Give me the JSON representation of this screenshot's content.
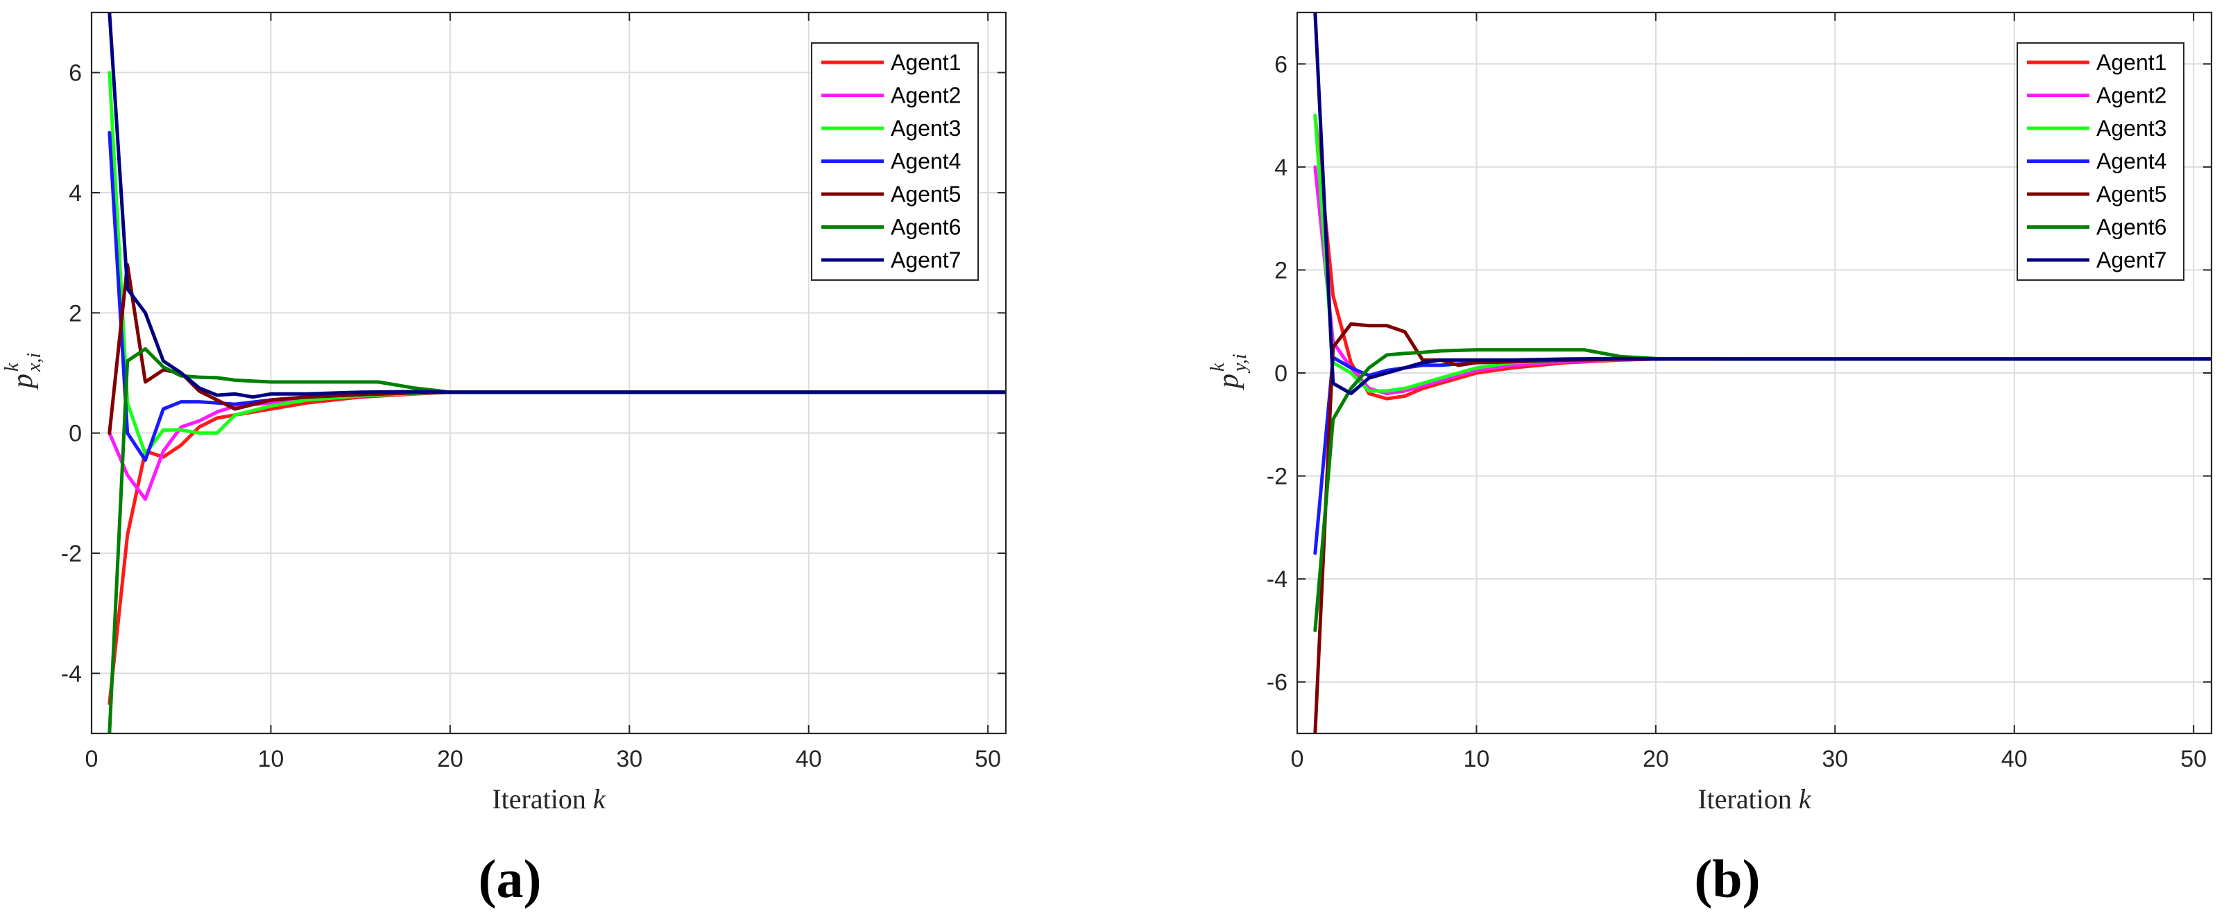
{
  "colors": {
    "Agent1": "#ff1a1a",
    "Agent2": "#ff1aff",
    "Agent3": "#1aff1a",
    "Agent4": "#1a1aff",
    "Agent5": "#800000",
    "Agent6": "#008000",
    "Agent7": "#000080"
  },
  "chart_data": [
    {
      "type": "line",
      "panel_label": "(a)",
      "xlabel": "Iteration",
      "xlabel_var": "k",
      "ylabel": {
        "main": "p",
        "sup": "k",
        "sub": "x,i"
      },
      "xlim": [
        0,
        51
      ],
      "ylim": [
        -5,
        7
      ],
      "xticks": [
        0,
        10,
        20,
        30,
        40,
        50
      ],
      "yticks": [
        -4,
        -2,
        0,
        2,
        4,
        6
      ],
      "grid": true,
      "legend": "top-right",
      "series": [
        {
          "name": "Agent1",
          "x": [
            1,
            2,
            3,
            4,
            5,
            6,
            7,
            8,
            10,
            12,
            15,
            18,
            20,
            25,
            30,
            40,
            51
          ],
          "y": [
            -4.5,
            -1.7,
            -0.3,
            -0.4,
            -0.2,
            0.1,
            0.25,
            0.3,
            0.4,
            0.5,
            0.6,
            0.65,
            0.68,
            0.68,
            0.68,
            0.68,
            0.68
          ]
        },
        {
          "name": "Agent2",
          "x": [
            1,
            2,
            3,
            4,
            5,
            6,
            7,
            8,
            10,
            12,
            15,
            18,
            20,
            25,
            30,
            40,
            51
          ],
          "y": [
            0,
            -0.7,
            -1.1,
            -0.3,
            0.1,
            0.2,
            0.35,
            0.45,
            0.5,
            0.55,
            0.62,
            0.66,
            0.68,
            0.68,
            0.68,
            0.68,
            0.68
          ]
        },
        {
          "name": "Agent3",
          "x": [
            1,
            2,
            3,
            4,
            5,
            6,
            7,
            8,
            10,
            12,
            15,
            18,
            20,
            25,
            30,
            40,
            51
          ],
          "y": [
            6,
            0.5,
            -0.35,
            0.05,
            0.05,
            0.0,
            0.0,
            0.3,
            0.45,
            0.55,
            0.62,
            0.66,
            0.68,
            0.68,
            0.68,
            0.68,
            0.68
          ]
        },
        {
          "name": "Agent4",
          "x": [
            1,
            2,
            3,
            4,
            5,
            6,
            7,
            8,
            10,
            12,
            15,
            18,
            20,
            25,
            30,
            40,
            51
          ],
          "y": [
            5,
            0.0,
            -0.45,
            0.4,
            0.52,
            0.52,
            0.5,
            0.48,
            0.55,
            0.6,
            0.64,
            0.67,
            0.68,
            0.68,
            0.68,
            0.68,
            0.68
          ]
        },
        {
          "name": "Agent5",
          "x": [
            1,
            2,
            3,
            4,
            5,
            6,
            7,
            8,
            10,
            12,
            15,
            18,
            20,
            25,
            30,
            40,
            51
          ],
          "y": [
            0,
            2.8,
            0.85,
            1.05,
            1.0,
            0.7,
            0.55,
            0.4,
            0.55,
            0.6,
            0.64,
            0.67,
            0.68,
            0.68,
            0.68,
            0.68,
            0.68
          ]
        },
        {
          "name": "Agent6",
          "x": [
            1,
            2,
            3,
            4,
            5,
            6,
            7,
            8,
            10,
            12,
            15,
            16,
            18,
            20,
            25,
            30,
            40,
            51
          ],
          "y": [
            -5,
            1.2,
            1.4,
            1.1,
            0.95,
            0.93,
            0.92,
            0.88,
            0.85,
            0.85,
            0.85,
            0.85,
            0.75,
            0.68,
            0.68,
            0.68,
            0.68,
            0.68
          ]
        },
        {
          "name": "Agent7",
          "x": [
            1,
            2,
            3,
            4,
            5,
            6,
            7,
            8,
            9,
            10,
            12,
            15,
            18,
            20,
            25,
            30,
            40,
            51
          ],
          "y": [
            7,
            2.4,
            2.0,
            1.2,
            1.0,
            0.75,
            0.63,
            0.65,
            0.6,
            0.65,
            0.65,
            0.68,
            0.69,
            0.68,
            0.68,
            0.68,
            0.68,
            0.68
          ]
        }
      ]
    },
    {
      "type": "line",
      "panel_label": "(b)",
      "xlabel": "Iteration",
      "xlabel_var": "k",
      "ylabel": {
        "main": "p",
        "sup": "k",
        "sub": "y,i"
      },
      "xlim": [
        0,
        51
      ],
      "ylim": [
        -7,
        7
      ],
      "xticks": [
        0,
        10,
        20,
        30,
        40,
        50
      ],
      "yticks": [
        -6,
        -4,
        -2,
        0,
        2,
        4,
        6
      ],
      "grid": true,
      "legend": "top-right",
      "series": [
        {
          "name": "Agent1",
          "x": [
            1,
            2,
            3,
            4,
            5,
            6,
            7,
            8,
            10,
            12,
            15,
            18,
            20,
            25,
            30,
            40,
            51
          ],
          "y": [
            5,
            1.5,
            0.2,
            -0.4,
            -0.5,
            -0.45,
            -0.3,
            -0.2,
            0.0,
            0.1,
            0.2,
            0.25,
            0.27,
            0.27,
            0.27,
            0.27,
            0.27
          ]
        },
        {
          "name": "Agent2",
          "x": [
            1,
            2,
            3,
            4,
            5,
            6,
            7,
            8,
            10,
            12,
            15,
            18,
            20,
            25,
            30,
            40,
            51
          ],
          "y": [
            4,
            0.6,
            0.1,
            -0.3,
            -0.4,
            -0.35,
            -0.25,
            -0.15,
            0.05,
            0.15,
            0.22,
            0.26,
            0.27,
            0.27,
            0.27,
            0.27,
            0.27
          ]
        },
        {
          "name": "Agent3",
          "x": [
            1,
            2,
            3,
            4,
            5,
            6,
            7,
            8,
            10,
            12,
            15,
            18,
            20,
            25,
            30,
            40,
            51
          ],
          "y": [
            5,
            0.2,
            0.0,
            -0.35,
            -0.35,
            -0.3,
            -0.2,
            -0.1,
            0.1,
            0.2,
            0.25,
            0.27,
            0.27,
            0.27,
            0.27,
            0.27,
            0.27
          ]
        },
        {
          "name": "Agent4",
          "x": [
            1,
            2,
            3,
            4,
            5,
            6,
            7,
            8,
            10,
            12,
            15,
            18,
            20,
            25,
            30,
            40,
            51
          ],
          "y": [
            -3.5,
            0.3,
            0.1,
            -0.05,
            0.05,
            0.1,
            0.15,
            0.15,
            0.2,
            0.22,
            0.25,
            0.27,
            0.27,
            0.27,
            0.27,
            0.27,
            0.27
          ]
        },
        {
          "name": "Agent5",
          "x": [
            1,
            2,
            3,
            4,
            5,
            6,
            7,
            8,
            9,
            10,
            12,
            15,
            18,
            20,
            25,
            30,
            40,
            51
          ],
          "y": [
            -7,
            0.5,
            0.95,
            0.92,
            0.92,
            0.8,
            0.25,
            0.25,
            0.15,
            0.2,
            0.22,
            0.25,
            0.27,
            0.27,
            0.27,
            0.27,
            0.27,
            0.27
          ]
        },
        {
          "name": "Agent6",
          "x": [
            1,
            2,
            3,
            4,
            5,
            6,
            7,
            8,
            10,
            12,
            15,
            16,
            18,
            20,
            25,
            30,
            40,
            51
          ],
          "y": [
            -5,
            -0.9,
            -0.3,
            0.1,
            0.35,
            0.38,
            0.4,
            0.43,
            0.45,
            0.45,
            0.45,
            0.45,
            0.32,
            0.28,
            0.27,
            0.27,
            0.27,
            0.27
          ]
        },
        {
          "name": "Agent7",
          "x": [
            1,
            2,
            3,
            4,
            5,
            6,
            7,
            8,
            9,
            10,
            12,
            15,
            18,
            20,
            25,
            30,
            40,
            51
          ],
          "y": [
            7,
            -0.2,
            -0.4,
            -0.1,
            0.0,
            0.1,
            0.2,
            0.25,
            0.25,
            0.25,
            0.25,
            0.27,
            0.28,
            0.27,
            0.27,
            0.27,
            0.27,
            0.27
          ]
        }
      ]
    }
  ]
}
